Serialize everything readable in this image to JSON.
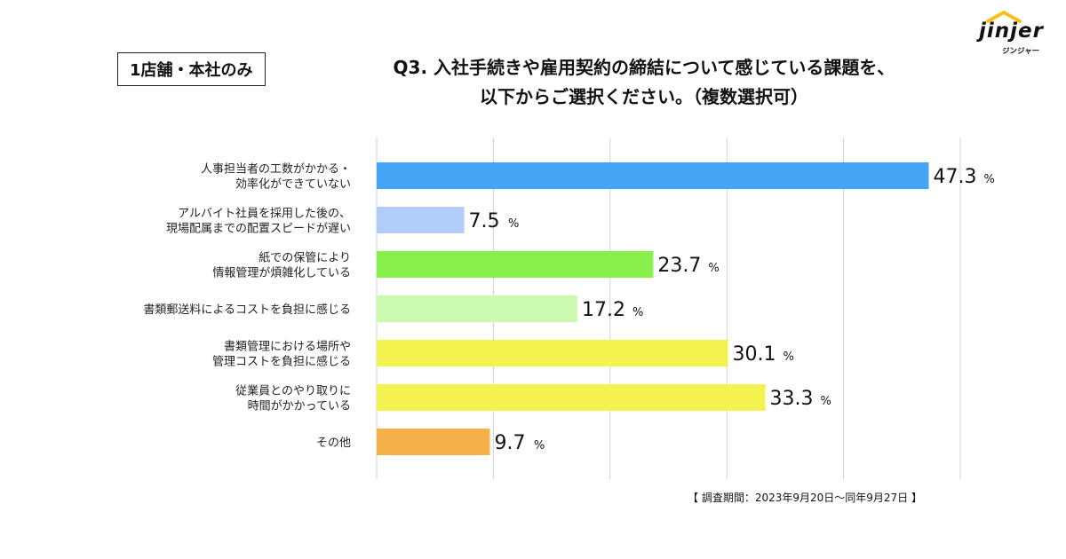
{
  "header": {
    "badge": "1店舗・本社のみ",
    "title_line1": "Q3. 入社手続きや雇用契約の締結について感じている課題を、",
    "title_line2": "以下からご選択ください。（複数選択可）"
  },
  "logo": {
    "word": "jinjer",
    "sub": "ジンジャー"
  },
  "footnote": "【 調査期間：2023年9月20日～同年9月27日 】",
  "chart_data": {
    "type": "bar",
    "orientation": "horizontal",
    "unit": "%",
    "xlim": [
      0,
      50
    ],
    "grid": true,
    "categories": [
      [
        "人事担当者の工数がかかる・",
        "効率化ができていない"
      ],
      [
        "アルバイト社員を採用した後の、",
        "現場配属までの配置スピードが遅い"
      ],
      [
        "紙での保管により",
        "情報管理が煩雑化している"
      ],
      [
        "書類郵送料によるコストを負担に感じる"
      ],
      [
        "書類管理における場所や",
        "管理コストを負担に感じる"
      ],
      [
        "従業員とのやり取りに",
        "時間がかかっている"
      ],
      [
        "その他"
      ]
    ],
    "values": [
      47.3,
      7.5,
      23.7,
      17.2,
      30.1,
      33.3,
      9.7
    ],
    "value_labels": [
      "47.3",
      "7.5",
      "23.7",
      "17.2",
      "30.1",
      "33.3",
      "9.7"
    ],
    "colors": [
      "#45a5f5",
      "#b3cdfb",
      "#88f04a",
      "#ccf9b0",
      "#f3f350",
      "#f3f350",
      "#f5b04a"
    ]
  }
}
